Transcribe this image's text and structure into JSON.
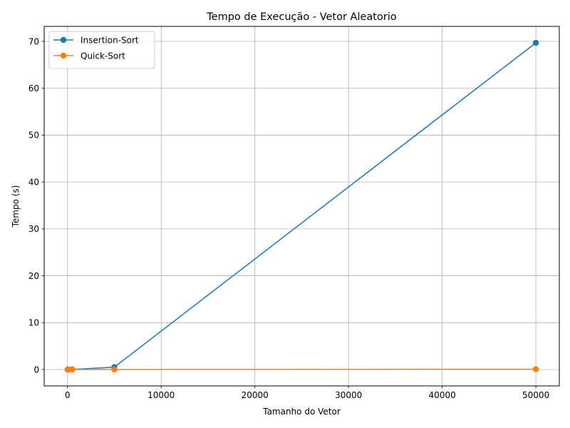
{
  "chart_data": {
    "type": "line",
    "title": "Tempo de Execução - Vetor Aleatorio",
    "xlabel": "Tamanho do Vetor",
    "ylabel": "Tempo (s)",
    "xlim": [
      -2490,
      52500
    ],
    "ylim": [
      -3.5,
      73.2
    ],
    "x_ticks": [
      0,
      10000,
      20000,
      30000,
      40000,
      50000
    ],
    "y_ticks": [
      0,
      10,
      20,
      30,
      40,
      50,
      60,
      70
    ],
    "grid": true,
    "legend_position": "top-left",
    "x": [
      10,
      100,
      500,
      5000,
      50000
    ],
    "series": [
      {
        "name": "Insertion-Sort",
        "color": "#1f77b4",
        "values": [
          0.0,
          0.001,
          0.02,
          0.5,
          69.7
        ]
      },
      {
        "name": "Quick-Sort",
        "color": "#ff7f0e",
        "values": [
          0.0,
          0.0,
          0.0,
          0.005,
          0.06
        ]
      }
    ]
  }
}
